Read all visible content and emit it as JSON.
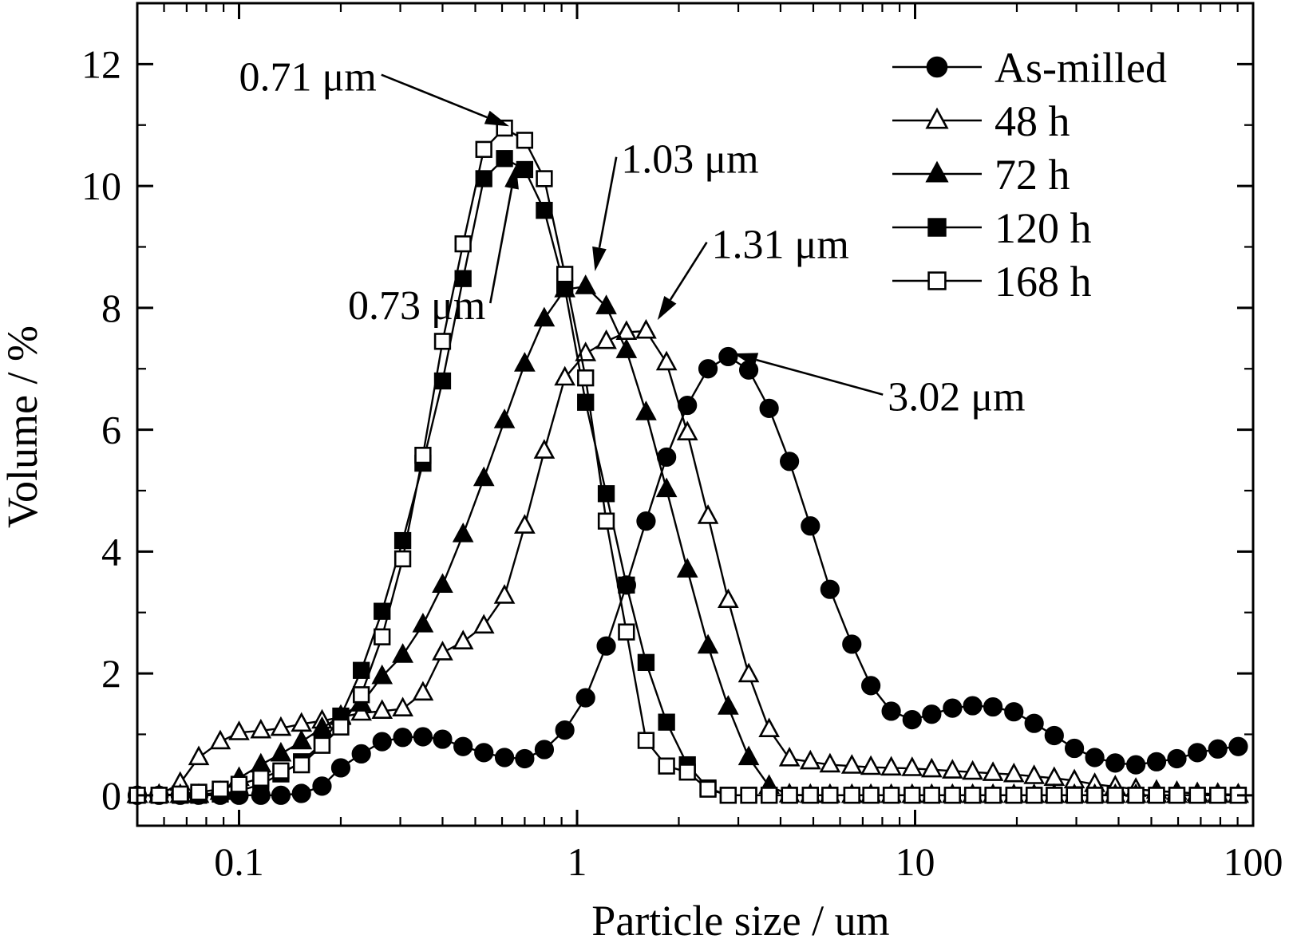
{
  "chart_data": {
    "type": "line",
    "title": "",
    "xlabel": "Particle size / um",
    "ylabel": "Volume / %",
    "xscale": "log",
    "xlim": [
      0.05,
      100
    ],
    "ylim": [
      -0.5,
      13
    ],
    "xticks": [
      {
        "value": 0.1,
        "label": "0.1"
      },
      {
        "value": 1,
        "label": "1"
      },
      {
        "value": 10,
        "label": "10"
      },
      {
        "value": 100,
        "label": "100"
      }
    ],
    "yticks": [
      {
        "value": 0,
        "label": "0"
      },
      {
        "value": 2,
        "label": "2"
      },
      {
        "value": 4,
        "label": "4"
      },
      {
        "value": 6,
        "label": "6"
      },
      {
        "value": 8,
        "label": "8"
      },
      {
        "value": 10,
        "label": "10"
      },
      {
        "value": 12,
        "label": "12"
      }
    ],
    "grid": false,
    "legend_position": "top-right",
    "x": [
      0.05,
      0.058,
      0.067,
      0.076,
      0.088,
      0.1,
      0.116,
      0.133,
      0.153,
      0.176,
      0.2,
      0.23,
      0.265,
      0.305,
      0.35,
      0.4,
      0.46,
      0.53,
      0.61,
      0.7,
      0.8,
      0.92,
      1.06,
      1.22,
      1.4,
      1.6,
      1.84,
      2.12,
      2.44,
      2.8,
      3.22,
      3.7,
      4.25,
      4.9,
      5.6,
      6.5,
      7.4,
      8.5,
      9.8,
      11.2,
      12.9,
      14.8,
      17,
      19.6,
      22.5,
      25.8,
      29.6,
      34,
      39.1,
      45,
      51.8,
      59.5,
      68.4,
      78.6,
      90.4
    ],
    "series": [
      {
        "name": "As-milled",
        "marker": "filled-circle",
        "values": [
          0,
          0,
          0,
          0,
          0,
          0,
          0,
          0,
          0.03,
          0.15,
          0.45,
          0.68,
          0.88,
          0.95,
          0.96,
          0.92,
          0.8,
          0.7,
          0.62,
          0.6,
          0.75,
          1.07,
          1.6,
          2.45,
          3.45,
          4.5,
          5.55,
          6.4,
          7.0,
          7.2,
          6.98,
          6.35,
          5.48,
          4.42,
          3.38,
          2.48,
          1.8,
          1.38,
          1.24,
          1.33,
          1.43,
          1.47,
          1.45,
          1.37,
          1.18,
          0.98,
          0.77,
          0.62,
          0.53,
          0.5,
          0.55,
          0.6,
          0.7,
          0.76,
          0.8
        ]
      },
      {
        "name": "48 h",
        "marker": "open-triangle",
        "values": [
          0,
          0,
          0.2,
          0.62,
          0.88,
          1.03,
          1.06,
          1.1,
          1.17,
          1.22,
          1.28,
          1.35,
          1.38,
          1.42,
          1.68,
          2.34,
          2.52,
          2.78,
          3.27,
          4.42,
          5.65,
          6.85,
          7.25,
          7.45,
          7.6,
          7.62,
          7.1,
          5.95,
          4.58,
          3.2,
          1.98,
          1.08,
          0.6,
          0.55,
          0.5,
          0.48,
          0.46,
          0.45,
          0.44,
          0.42,
          0.4,
          0.38,
          0.36,
          0.34,
          0.31,
          0.28,
          0.24,
          0.18,
          0.14,
          0.1,
          0.07,
          0.05,
          0.03,
          0.02,
          0.01
        ]
      },
      {
        "name": "72 h",
        "marker": "filled-triangle",
        "values": [
          0,
          0,
          0,
          0,
          0.05,
          0.28,
          0.5,
          0.68,
          0.88,
          1.1,
          1.3,
          1.5,
          1.95,
          2.3,
          2.8,
          3.45,
          4.28,
          5.2,
          6.15,
          7.08,
          7.82,
          8.3,
          8.35,
          8.02,
          7.3,
          6.28,
          5.02,
          3.7,
          2.45,
          1.45,
          0.62,
          0.15,
          0.01,
          0,
          0,
          0,
          0,
          0,
          0,
          0,
          0,
          0,
          0,
          0,
          0,
          0,
          0,
          0,
          0,
          0,
          0,
          0,
          0,
          0,
          0
        ]
      },
      {
        "name": "120 h",
        "marker": "filled-square",
        "values": [
          0,
          0,
          0,
          0,
          0.02,
          0.07,
          0.18,
          0.35,
          0.55,
          0.85,
          1.3,
          2.05,
          3.02,
          4.18,
          5.45,
          6.8,
          8.48,
          10.12,
          10.45,
          10.27,
          9.6,
          8.32,
          6.45,
          4.95,
          3.45,
          2.18,
          1.2,
          0.5,
          0.12,
          0,
          0,
          0,
          0,
          0,
          0,
          0,
          0,
          0,
          0,
          0,
          0,
          0,
          0,
          0,
          0,
          0,
          0,
          0,
          0,
          0,
          0,
          0,
          0,
          0,
          0
        ]
      },
      {
        "name": "168 h",
        "marker": "open-square",
        "values": [
          0,
          0,
          0.02,
          0.05,
          0.1,
          0.18,
          0.28,
          0.4,
          0.5,
          0.82,
          1.12,
          1.65,
          2.6,
          3.88,
          5.58,
          7.45,
          9.05,
          10.6,
          10.95,
          10.75,
          10.12,
          8.55,
          6.85,
          4.5,
          2.68,
          0.9,
          0.48,
          0.38,
          0.1,
          0,
          0,
          0,
          0,
          0,
          0,
          0,
          0,
          0,
          0,
          0,
          0,
          0,
          0,
          0,
          0,
          0,
          0,
          0,
          0,
          0,
          0,
          0,
          0,
          0,
          0
        ]
      }
    ],
    "annotations": [
      {
        "text": "0.71 μm",
        "x": 0.63,
        "y": 10.98,
        "text_x": 0.1,
        "text_y": 11.8
      },
      {
        "text": "0.73 μm",
        "x": 0.66,
        "y": 10.35,
        "text_x": 0.21,
        "text_y": 8.05
      },
      {
        "text": "1.03 μm",
        "x": 1.13,
        "y": 8.6,
        "text_x": 1.35,
        "text_y": 10.45
      },
      {
        "text": "1.31 μm",
        "x": 1.73,
        "y": 7.8,
        "text_x": 2.5,
        "text_y": 9.05
      },
      {
        "text": "3.02 μm",
        "x": 2.9,
        "y": 7.25,
        "text_x": 8.3,
        "text_y": 6.55
      }
    ]
  }
}
